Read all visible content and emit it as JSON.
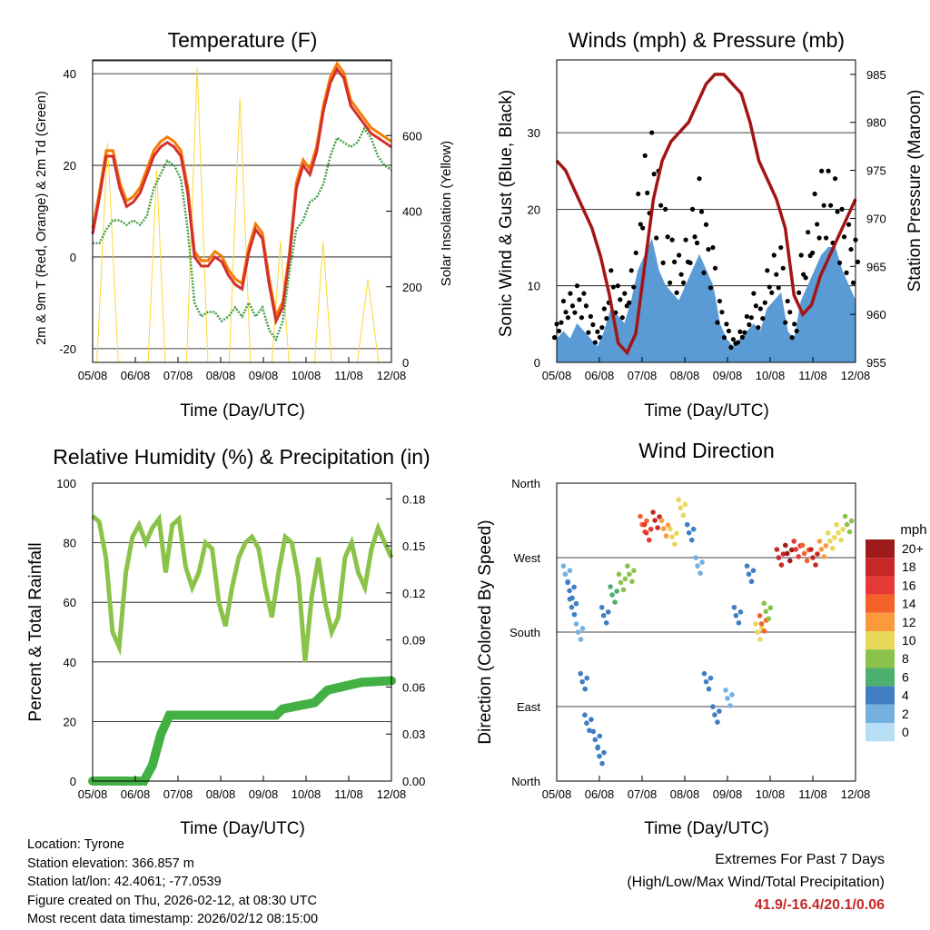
{
  "days": [
    "05/08",
    "06/08",
    "07/08",
    "08/08",
    "09/08",
    "10/08",
    "11/08",
    "12/08"
  ],
  "temperature": {
    "title": "Temperature (F)",
    "ylabel_left": "2m & 9m T (Red, Orange) & 2m Td (Green)",
    "ylabel_right": "Solar Insolation (Yellow)",
    "xlabel": "Time (Day/UTC)",
    "left_ticks": [
      "-20",
      "0",
      "20",
      "40"
    ],
    "right_ticks": [
      "0",
      "200",
      "400",
      "600"
    ],
    "colors": {
      "t2m": "#d32f2f",
      "t9m": "#f57c00",
      "td": "#43a047",
      "solar": "#fdd835"
    },
    "t2m": [
      5,
      13,
      22,
      22,
      15,
      11,
      12,
      14,
      18,
      22,
      24,
      25,
      24,
      22,
      14,
      0,
      -2,
      -2,
      0,
      -1,
      -4,
      -6,
      -7,
      1,
      6,
      4,
      -6,
      -14,
      -11,
      0,
      15,
      20,
      18,
      23,
      32,
      38,
      41,
      39,
      33,
      31,
      29,
      27,
      26,
      25,
      24
    ],
    "td": [
      3,
      3,
      6,
      8,
      8,
      7,
      8,
      7,
      9,
      15,
      18,
      21,
      20,
      17,
      6,
      -10,
      -13,
      -12,
      -12,
      -14,
      -13,
      -11,
      -13,
      -10,
      -13,
      -11,
      -16,
      -18,
      -14,
      -3,
      6,
      8,
      12,
      13,
      16,
      22,
      26,
      25,
      24,
      25,
      28,
      26,
      22,
      20,
      19
    ],
    "solar": [
      [
        0.1,
        0
      ],
      [
        0.35,
        580
      ],
      [
        0.6,
        0
      ],
      [
        1.3,
        0
      ],
      [
        1.5,
        510
      ],
      [
        1.7,
        0
      ],
      [
        2.2,
        0
      ],
      [
        2.45,
        780
      ],
      [
        2.7,
        0
      ],
      [
        3.2,
        0
      ],
      [
        3.45,
        700
      ],
      [
        3.7,
        0
      ],
      [
        4.2,
        0
      ],
      [
        4.4,
        320
      ],
      [
        4.6,
        0
      ],
      [
        5.2,
        0
      ],
      [
        5.4,
        320
      ],
      [
        5.6,
        0
      ],
      [
        6.2,
        0
      ],
      [
        6.45,
        220
      ],
      [
        6.7,
        0
      ]
    ]
  },
  "winds": {
    "title": "Winds (mph) & Pressure (mb)",
    "ylabel_left": "Sonic Wind & Gust (Blue, Black)",
    "ylabel_right": "Station Pressure (Maroon)",
    "xlabel": "Time (Day/UTC)",
    "left_ticks": [
      "0",
      "10",
      "20",
      "30"
    ],
    "right_ticks": [
      "955",
      "960",
      "965",
      "970",
      "975",
      "980",
      "985"
    ],
    "colors": {
      "wind": "#5b9bd5",
      "gust": "#000000",
      "pressure": "#a31515"
    },
    "wind": [
      3,
      4,
      3,
      5,
      4,
      3,
      2,
      4,
      7,
      6,
      5,
      8,
      12,
      14,
      16,
      12,
      10,
      9,
      8,
      10,
      12,
      14,
      12,
      10,
      5,
      3,
      2,
      3,
      4,
      5,
      4,
      7,
      8,
      9,
      4,
      3,
      8,
      10,
      12,
      14,
      15,
      15,
      12,
      10,
      8
    ],
    "gust": [
      5,
      8,
      9,
      10,
      9,
      6,
      4,
      7,
      12,
      10,
      9,
      12,
      22,
      27,
      30,
      25,
      20,
      16,
      14,
      16,
      20,
      24,
      18,
      15,
      8,
      5,
      3,
      4,
      6,
      9,
      7,
      12,
      14,
      15,
      8,
      5,
      14,
      17,
      22,
      25,
      25,
      24,
      20,
      18,
      16
    ],
    "pressure": [
      976,
      975,
      973,
      971,
      969,
      966,
      962,
      957,
      956,
      958,
      965,
      972,
      976,
      978,
      979,
      980,
      982,
      984,
      985,
      985,
      984,
      983,
      980,
      976,
      974,
      972,
      969,
      962,
      960,
      961,
      964,
      966,
      968,
      970,
      972
    ]
  },
  "humidity": {
    "title": "Relative Humidity (%) & Precipitation (in)",
    "ylabel_left": "Percent & Total Rainfall",
    "xlabel": "Time (Day/UTC)",
    "left_ticks": [
      "0",
      "20",
      "40",
      "60",
      "80",
      "100"
    ],
    "right_ticks": [
      "0.00",
      "0.03",
      "0.06",
      "0.09",
      "0.12",
      "0.15",
      "0.18"
    ],
    "colors": {
      "rh": "#8bc34a",
      "precip": "#43b043"
    },
    "rh": [
      89,
      87,
      75,
      50,
      45,
      70,
      82,
      86,
      80,
      85,
      88,
      70,
      86,
      88,
      72,
      65,
      70,
      80,
      78,
      60,
      52,
      65,
      75,
      80,
      82,
      78,
      65,
      55,
      70,
      82,
      80,
      68,
      40,
      62,
      75,
      60,
      50,
      55,
      75,
      80,
      70,
      65,
      78,
      85,
      80,
      75
    ],
    "precip": [
      [
        0,
        0
      ],
      [
        1.2,
        0
      ],
      [
        1.4,
        0.01
      ],
      [
        1.6,
        0.03
      ],
      [
        1.8,
        0.042
      ],
      [
        4.3,
        0.042
      ],
      [
        4.45,
        0.046
      ],
      [
        5.2,
        0.05
      ],
      [
        5.5,
        0.058
      ],
      [
        6.3,
        0.063
      ],
      [
        7,
        0.064
      ]
    ]
  },
  "direction": {
    "title": "Wind Direction",
    "ylabel": "Direction (Colored By Speed)",
    "xlabel": "Time (Day/UTC)",
    "ticks": [
      "North",
      "East",
      "South",
      "West",
      "North"
    ],
    "legend_title": "mph",
    "legend_labels": [
      "20+",
      "18",
      "16",
      "14",
      "12",
      "10",
      "8",
      "6",
      "4",
      "2",
      "0"
    ],
    "legend_colors": [
      "#9e1b1b",
      "#c62828",
      "#e53935",
      "#f4622a",
      "#fb9a3c",
      "#e8d85a",
      "#8bc34a",
      "#4caf6e",
      "#3f7ec3",
      "#74b0e0",
      "#b8def5"
    ],
    "points": [
      [
        0.2,
        250,
        2
      ],
      [
        0.3,
        230,
        4
      ],
      [
        0.35,
        210,
        3
      ],
      [
        0.5,
        180,
        2
      ],
      [
        0.6,
        120,
        3
      ],
      [
        0.7,
        70,
        4
      ],
      [
        0.9,
        50,
        3
      ],
      [
        1.0,
        30,
        4
      ],
      [
        1.1,
        200,
        3
      ],
      [
        1.3,
        225,
        6
      ],
      [
        1.5,
        240,
        8
      ],
      [
        1.7,
        250,
        7
      ],
      [
        2.0,
        310,
        14
      ],
      [
        2.1,
        300,
        16
      ],
      [
        2.3,
        315,
        18
      ],
      [
        2.5,
        305,
        12
      ],
      [
        2.7,
        295,
        10
      ],
      [
        2.9,
        330,
        9
      ],
      [
        3.1,
        300,
        3
      ],
      [
        3.3,
        260,
        2
      ],
      [
        3.5,
        120,
        3
      ],
      [
        3.7,
        80,
        4
      ],
      [
        4.0,
        100,
        2
      ],
      [
        4.2,
        200,
        3
      ],
      [
        4.5,
        250,
        4
      ],
      [
        4.7,
        180,
        10
      ],
      [
        4.8,
        190,
        13
      ],
      [
        4.9,
        205,
        7
      ],
      [
        5.2,
        270,
        18
      ],
      [
        5.4,
        275,
        20
      ],
      [
        5.6,
        280,
        16
      ],
      [
        5.8,
        275,
        14
      ],
      [
        6.0,
        270,
        17
      ],
      [
        6.2,
        280,
        12
      ],
      [
        6.4,
        290,
        10
      ],
      [
        6.6,
        300,
        9
      ],
      [
        6.8,
        310,
        8
      ]
    ]
  },
  "info": {
    "location": "Location: Tyrone",
    "elevation": "Station elevation: 366.857 m",
    "latlon": "Station lat/lon: 42.4061; -77.0539",
    "created": "Figure created on Thu, 2026-02-12, at 08:30 UTC",
    "recent": "Most recent data timestamp: 2026/02/12 08:15:00"
  },
  "extremes": {
    "title": "Extremes For Past 7 Days",
    "subtitle": "(High/Low/Max Wind/Total Precipitation)",
    "values": "41.9/-16.4/20.1/0.06"
  }
}
